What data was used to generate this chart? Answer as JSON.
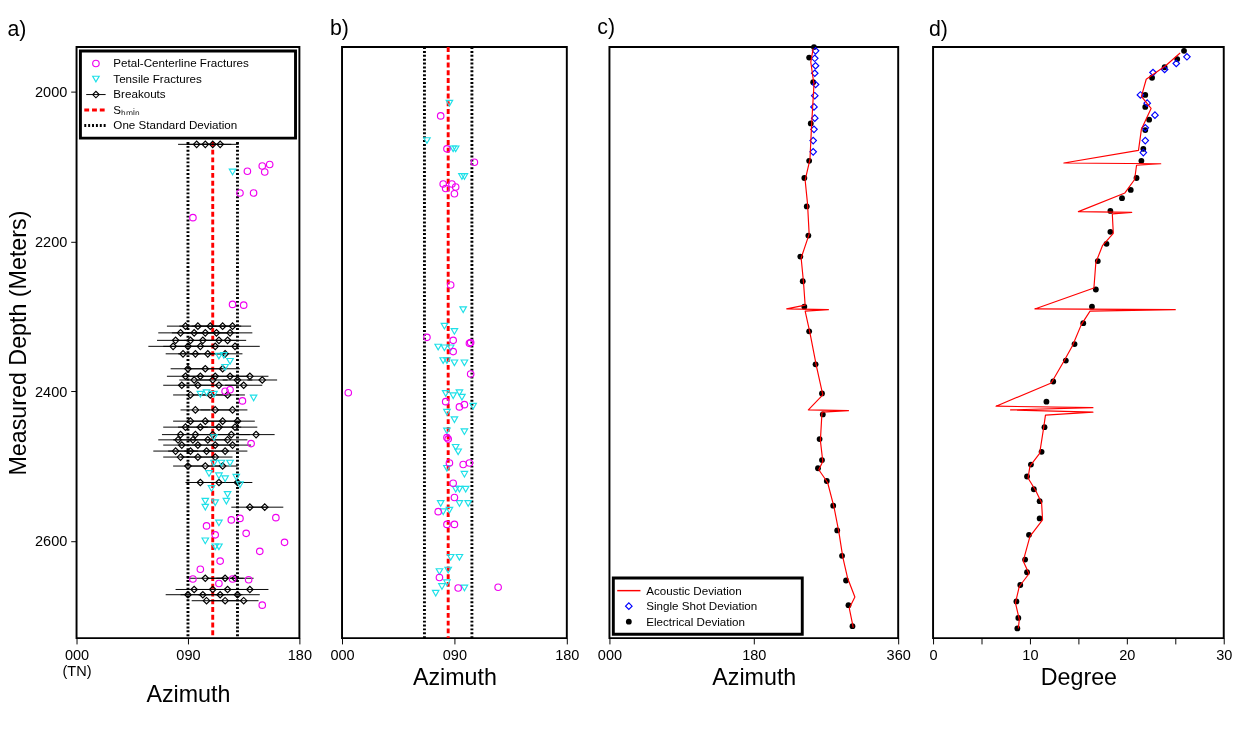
{
  "chart_data": [
    {
      "type": "scatter",
      "title": "a)",
      "xlabel": "Azimuth",
      "ylabel": "Measured Depth (Meters)",
      "xlim": [
        0,
        180
      ],
      "ylim": [
        2730,
        1940
      ],
      "xticks": [
        {
          "value": 0,
          "label": "000\n(TN)"
        },
        {
          "value": 90,
          "label": "090"
        },
        180
      ],
      "yticks": [
        2000,
        2200,
        2400,
        2600
      ],
      "grid": false,
      "legend": "top",
      "series": [
        {
          "name": "Petal-Centerline Fractures",
          "color": "#f000f0",
          "marker": "circle",
          "x": [
            138,
            150,
            152,
            156,
            132,
            143,
            94,
            126,
            135,
            120,
            124,
            134,
            141,
            125,
            132,
            161,
            105,
            112,
            137,
            168,
            148,
            116,
            100,
            94,
            126,
            139,
            150,
            115
          ],
          "values": [
            2106,
            2099,
            2107,
            2097,
            2135,
            2135,
            2168,
            2284,
            2285,
            2400,
            2398,
            2413,
            2470,
            2572,
            2570,
            2569,
            2580,
            2592,
            2590,
            2602,
            2614,
            2627,
            2638,
            2651,
            2651,
            2652,
            2686,
            2657
          ]
        },
        {
          "name": "Tensile Fractures",
          "color": "#1ee0e8",
          "marker": "triangle",
          "x": [
            126,
            115,
            119,
            124,
            120,
            100,
            105,
            111,
            143,
            111,
            111,
            117,
            124,
            107,
            115,
            120,
            129,
            132,
            109,
            122,
            104,
            112,
            121,
            104,
            115,
            104,
            112,
            115
          ],
          "values": [
            2107,
            2353,
            2352,
            2360,
            2368,
            2404,
            2402,
            2404,
            2409,
            2462,
            2496,
            2496,
            2496,
            2510,
            2513,
            2517,
            2515,
            2525,
            2530,
            2538,
            2547,
            2549,
            2547,
            2555,
            2576,
            2600,
            2608,
            2608
          ]
        },
        {
          "name": "Breakouts",
          "color": "#000000",
          "marker": "diamond",
          "x": [
            97,
            104,
            110,
            116,
            88,
            98,
            108,
            118,
            126,
            84,
            95,
            104,
            113,
            124,
            80,
            92,
            102,
            115,
            122,
            78,
            90,
            100,
            112,
            128,
            86,
            96,
            106,
            120,
            90,
            104,
            118,
            88,
            100,
            112,
            124,
            140,
            95,
            110,
            130,
            150,
            85,
            98,
            115,
            135,
            92,
            108,
            122,
            96,
            112,
            126,
            92,
            104,
            118,
            130,
            88,
            100,
            115,
            128,
            84,
            96,
            110,
            125,
            145,
            82,
            94,
            106,
            122,
            85,
            98,
            112,
            126,
            80,
            92,
            105,
            120,
            84,
            98,
            112,
            90,
            104,
            118,
            100,
            115,
            130,
            140,
            152,
            104,
            120,
            128,
            95,
            110,
            122,
            140,
            90,
            102,
            116,
            130,
            105,
            120,
            135
          ],
          "values": [
            2070,
            2070,
            2070,
            2070,
            2313,
            2313,
            2313,
            2313,
            2313,
            2322,
            2322,
            2322,
            2322,
            2322,
            2332,
            2332,
            2332,
            2332,
            2332,
            2340,
            2340,
            2340,
            2340,
            2340,
            2350,
            2350,
            2350,
            2350,
            2370,
            2370,
            2370,
            2380,
            2380,
            2380,
            2380,
            2380,
            2385,
            2385,
            2385,
            2385,
            2392,
            2392,
            2392,
            2392,
            2405,
            2405,
            2405,
            2425,
            2425,
            2425,
            2440,
            2440,
            2440,
            2440,
            2448,
            2448,
            2448,
            2448,
            2458,
            2458,
            2458,
            2458,
            2458,
            2465,
            2465,
            2465,
            2465,
            2472,
            2472,
            2472,
            2472,
            2480,
            2480,
            2480,
            2480,
            2488,
            2488,
            2488,
            2500,
            2500,
            2500,
            2522,
            2522,
            2522,
            2555,
            2555,
            2650,
            2650,
            2650,
            2665,
            2665,
            2665,
            2665,
            2672,
            2672,
            2672,
            2672,
            2680,
            2680,
            2680
          ],
          "xerrors": [
            15,
            15,
            15,
            15,
            15,
            15,
            15,
            15,
            15,
            18,
            18,
            18,
            18,
            18,
            15,
            15,
            15,
            15,
            15,
            20,
            20,
            20,
            20,
            20,
            14,
            14,
            14,
            14,
            14,
            14,
            14,
            15,
            15,
            15,
            15,
            15,
            12,
            12,
            12,
            12,
            15,
            15,
            15,
            15,
            14,
            14,
            14,
            12,
            12,
            12,
            14,
            14,
            14,
            14,
            18,
            18,
            18,
            18,
            15,
            15,
            15,
            15,
            15,
            16,
            16,
            16,
            16,
            15,
            15,
            15,
            15,
            18,
            18,
            18,
            18,
            14,
            14,
            14,
            12,
            12,
            12,
            12,
            12,
            12,
            15,
            15,
            15,
            15,
            15,
            15,
            15,
            15,
            15,
            18,
            18,
            18,
            18,
            12,
            12,
            12
          ]
        }
      ],
      "ref_lines": [
        {
          "axis": "x",
          "value": 110,
          "label": "Sₕₘᵢₙ",
          "color": "#ff0000",
          "line_style": "dashed"
        },
        {
          "axis": "x",
          "value": 90,
          "label": "One Standard Deviation",
          "color": "#000000",
          "line_style": "dotted"
        },
        {
          "axis": "x",
          "value": 130,
          "color": "#000000",
          "line_style": "dotted"
        }
      ]
    },
    {
      "type": "scatter",
      "title": "b)",
      "xlabel": "Azimuth",
      "xlim": [
        0,
        180
      ],
      "ylim": [
        2730,
        1940
      ],
      "xticks": [
        {
          "value": 0,
          "label": "000"
        },
        {
          "value": 90,
          "label": "090"
        },
        180
      ],
      "tick_labels": "x",
      "grid": false,
      "series": [
        {
          "color": "#f000f0",
          "marker": "circle",
          "x": [
            79,
            84,
            106,
            81,
            83,
            88,
            91,
            90,
            87,
            68,
            89,
            102,
            103,
            89,
            103,
            5,
            83,
            94,
            98,
            84,
            85,
            86,
            97,
            102,
            89,
            90,
            77,
            84,
            90,
            78,
            93,
            125
          ],
          "values": [
            2032,
            2076,
            2094,
            2123,
            2129,
            2123,
            2127,
            2136,
            2258,
            2328,
            2332,
            2336,
            2335,
            2347,
            2377,
            2402,
            2414,
            2421,
            2418,
            2462,
            2464,
            2496,
            2498,
            2496,
            2523,
            2542,
            2561,
            2578,
            2578,
            2649,
            2663,
            2662
          ]
        },
        {
          "color": "#1ee0e8",
          "marker": "triangle",
          "x": [
            86,
            68,
            89,
            91,
            96,
            98,
            97,
            82,
            90,
            77,
            82,
            87,
            81,
            84,
            90,
            98,
            83,
            94,
            89,
            96,
            105,
            84,
            90,
            84,
            98,
            91,
            93,
            84,
            98,
            91,
            94,
            99,
            94,
            101,
            79,
            81,
            86,
            87,
            94,
            78,
            85,
            84,
            80,
            98,
            75
          ],
          "values": [
            2015,
            2065,
            2076,
            2076,
            2113,
            2113,
            2291,
            2313,
            2320,
            2341,
            2342,
            2342,
            2359,
            2359,
            2362,
            2362,
            2403,
            2402,
            2406,
            2408,
            2420,
            2428,
            2438,
            2453,
            2454,
            2475,
            2481,
            2503,
            2511,
            2531,
            2531,
            2531,
            2550,
            2550,
            2550,
            2561,
            2559,
            2622,
            2622,
            2641,
            2639,
            2656,
            2661,
            2663,
            2670
          ]
        }
      ],
      "ref_lines": [
        {
          "axis": "x",
          "value": 85,
          "color": "#ff0000",
          "line_style": "dashed"
        },
        {
          "axis": "x",
          "value": 66,
          "color": "#000000",
          "line_style": "dotted"
        },
        {
          "axis": "x",
          "value": 104,
          "color": "#000000",
          "line_style": "dotted"
        }
      ]
    },
    {
      "type": "line",
      "title": "c)",
      "xlabel": "Azimuth",
      "xlim": [
        0,
        360
      ],
      "ylim": [
        2730,
        1940
      ],
      "xticks": [
        {
          "value": 0,
          "label": "000"
        },
        180,
        360
      ],
      "tick_labels": "x",
      "grid": false,
      "legend": "bottom left",
      "series": [
        {
          "name": "Acoustic Deviation",
          "color": "#ff0000",
          "type": "line",
          "x": [
            254,
            251,
            255,
            252,
            250,
            244,
            247,
            249,
            239,
            242,
            244,
            221,
            273,
            244,
            250,
            258,
            266,
            248,
            298,
            265,
            263,
            266,
            261,
            272,
            280,
            286,
            291,
            297,
            306,
            299,
            304
          ],
          "values": [
            1942,
            1960,
            1990,
            2045,
            2090,
            2118,
            2150,
            2190,
            2222,
            2255,
            2285,
            2290,
            2291,
            2293,
            2322,
            2366,
            2405,
            2425,
            2426,
            2428,
            2466,
            2494,
            2505,
            2522,
            2555,
            2588,
            2622,
            2650,
            2675,
            2690,
            2716
          ]
        },
        {
          "name": "Single Shot Deviation",
          "color": "#0000ff",
          "type": "scatter",
          "marker": "diamond",
          "x": [
            257,
            256,
            257,
            256,
            257,
            256,
            255,
            256,
            255,
            254,
            254
          ],
          "values": [
            1945,
            1955,
            1965,
            1975,
            1990,
            2005,
            2020,
            2035,
            2050,
            2065,
            2080
          ]
        },
        {
          "name": "Electrical Deviation",
          "color": "#000000",
          "type": "scatter",
          "marker": "circle",
          "x": [
            255,
            249,
            254,
            251,
            249,
            243,
            246,
            248,
            238,
            241,
            243,
            249,
            257,
            265,
            266,
            262,
            265,
            260,
            271,
            279,
            284,
            290,
            295,
            298,
            303
          ],
          "values": [
            1940,
            1954,
            1987,
            2042,
            2092,
            2115,
            2153,
            2192,
            2220,
            2253,
            2287,
            2320,
            2364,
            2403,
            2431,
            2464,
            2492,
            2503,
            2520,
            2553,
            2586,
            2620,
            2653,
            2686,
            2714
          ]
        }
      ]
    },
    {
      "type": "line",
      "title": "d)",
      "xlabel": "Degree",
      "xlim": [
        0,
        30
      ],
      "ylim": [
        2730,
        1940
      ],
      "xticks": [
        0,
        {
          "value": 5,
          "label": null
        },
        10,
        {
          "value": 15,
          "label": null
        },
        20,
        {
          "value": 25,
          "label": null
        },
        30
      ],
      "tick_labels": "x",
      "grid": false,
      "series": [
        {
          "color": "#ff0000",
          "type": "line",
          "x": [
            25.5,
            24.0,
            22.0,
            21.5,
            22.5,
            21.5,
            21.2,
            13.5,
            23.5,
            21.0,
            20.8,
            19.8,
            15.0,
            20.5,
            18.5,
            18.6,
            17.5,
            16.8,
            16.6,
            10.5,
            25.0,
            16.2,
            15.3,
            14.4,
            13.5,
            12.2,
            6.5,
            16.5,
            8.0,
            16.5,
            11.6,
            11.4,
            11.0,
            10.0,
            9.8,
            10.6,
            11.2,
            11.3,
            10.0,
            9.3,
            9.9,
            8.9,
            8.5,
            8.9,
            8.8
          ],
          "values": [
            1948,
            1965,
            1983,
            2006,
            2022,
            2050,
            2078,
            2095,
            2096,
            2098,
            2117,
            2135,
            2160,
            2161,
            2163,
            2189,
            2205,
            2228,
            2262,
            2290,
            2291,
            2293,
            2311,
            2339,
            2360,
            2389,
            2420,
            2422,
            2425,
            2428,
            2432,
            2450,
            2483,
            2500,
            2516,
            2533,
            2549,
            2572,
            2594,
            2627,
            2644,
            2661,
            2683,
            2705,
            2717
          ]
        },
        {
          "color": "#0000ff",
          "type": "scatter",
          "marker": "diamond",
          "x": [
            26.2,
            25.1,
            23.9,
            22.7,
            21.4,
            22.1,
            22.9,
            21.9,
            21.9,
            21.7
          ],
          "values": [
            1953,
            1962,
            1970,
            1974,
            2004,
            2015,
            2031,
            2048,
            2065,
            2081
          ]
        },
        {
          "color": "#000000",
          "type": "scatter",
          "marker": "circle",
          "x": [
            25.9,
            25.2,
            23.9,
            22.6,
            21.9,
            21.9,
            22.3,
            21.9,
            21.7,
            21.5,
            21.0,
            20.4,
            19.5,
            18.3,
            18.3,
            17.9,
            17.0,
            16.8,
            16.4,
            15.5,
            14.6,
            13.7,
            12.4,
            11.7,
            11.5,
            11.2,
            10.1,
            9.7,
            10.4,
            11.0,
            11.0,
            9.9,
            9.5,
            9.7,
            9.0,
            8.6,
            8.8,
            8.7
          ],
          "values": [
            1945,
            1956,
            1967,
            1981,
            2004,
            2020,
            2037,
            2051,
            2076,
            2092,
            2115,
            2131,
            2142,
            2159,
            2187,
            2203,
            2226,
            2264,
            2287,
            2309,
            2337,
            2359,
            2387,
            2414,
            2448,
            2481,
            2498,
            2514,
            2531,
            2547,
            2570,
            2592,
            2625,
            2642,
            2659,
            2681,
            2703,
            2717
          ]
        }
      ]
    }
  ]
}
